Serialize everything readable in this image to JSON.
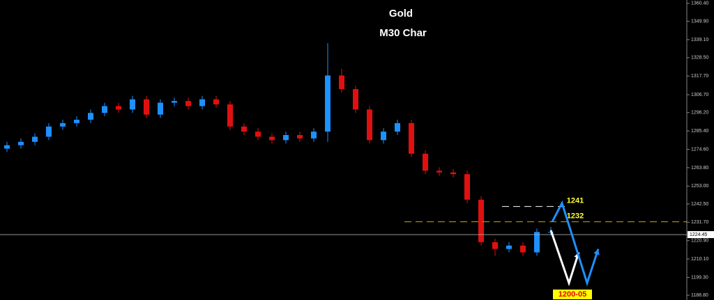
{
  "chart_data": {
    "type": "candlestick",
    "title": "Gold",
    "subtitle": "M30 Char",
    "up_color": "#1e90ff",
    "down_color": "#e01010",
    "xlim": [
      -0.5,
      48.75
    ],
    "ylim": [
      1186,
      1362.4
    ],
    "yticks": [
      {
        "value": 1360.4,
        "label": "1360.40"
      },
      {
        "value": 1349.9,
        "label": "1349.90"
      },
      {
        "value": 1339.1,
        "label": "1339.10"
      },
      {
        "value": 1328.5,
        "label": "1328.50"
      },
      {
        "value": 1317.7,
        "label": "1317.70"
      },
      {
        "value": 1306.7,
        "label": "1306.70"
      },
      {
        "value": 1296.2,
        "label": "1296.20"
      },
      {
        "value": 1285.4,
        "label": "1285.40"
      },
      {
        "value": 1274.6,
        "label": "1274.60"
      },
      {
        "value": 1263.8,
        "label": "1263.80"
      },
      {
        "value": 1253,
        "label": "1253.00"
      },
      {
        "value": 1242.5,
        "label": "1242.50"
      },
      {
        "value": 1231.7,
        "label": "1231.70"
      },
      {
        "value": 1220.9,
        "label": "1220.90"
      },
      {
        "value": 1210.1,
        "label": "1210.10"
      },
      {
        "value": 1199.3,
        "label": "1199.30"
      },
      {
        "value": 1188.8,
        "label": "1188.80"
      }
    ],
    "open": [
      1275,
      1277,
      1279,
      1282,
      1288,
      1290,
      1292,
      1296,
      1300,
      1298,
      1304,
      1295,
      1302,
      1303,
      1300,
      1304,
      1301,
      1288,
      1285,
      1282,
      1280,
      1283,
      1281,
      1285,
      1318,
      1310,
      1298,
      1280,
      1285,
      1290,
      1272,
      1262,
      1261,
      1260,
      1245,
      1220,
      1216,
      1218,
      1214,
      1226
    ],
    "high": [
      1279,
      1281,
      1284,
      1290,
      1292,
      1294,
      1298,
      1302,
      1302,
      1306,
      1306,
      1304,
      1305,
      1305,
      1306,
      1306,
      1303,
      1290,
      1287,
      1284,
      1285,
      1285,
      1287,
      1337,
      1322,
      1312,
      1300,
      1287,
      1292,
      1292,
      1274,
      1264,
      1263,
      1262,
      1247,
      1222,
      1220,
      1220,
      1228,
      1229
    ],
    "low": [
      1273,
      1275,
      1277,
      1280,
      1286,
      1288,
      1290,
      1294,
      1296,
      1296,
      1293,
      1293,
      1300,
      1298,
      1298,
      1299,
      1286,
      1283,
      1280,
      1278,
      1278,
      1279,
      1279,
      1279,
      1308,
      1296,
      1278,
      1278,
      1283,
      1270,
      1260,
      1259,
      1258,
      1243,
      1218,
      1212,
      1214,
      1212,
      1212,
      1224
    ],
    "close": [
      1277,
      1279,
      1282,
      1288,
      1290,
      1292,
      1296,
      1300,
      1298,
      1304,
      1295,
      1302,
      1303,
      1300,
      1304,
      1301,
      1288,
      1285,
      1282,
      1280,
      1283,
      1281,
      1285,
      1318,
      1310,
      1298,
      1280,
      1285,
      1290,
      1272,
      1262,
      1261,
      1260,
      1245,
      1220,
      1216,
      1218,
      1214,
      1226,
      1226
    ],
    "current_price": 1224.45,
    "levels": [
      {
        "value": 1241,
        "color": "#ffffff"
      },
      {
        "value": 1232,
        "color": "#c8a800"
      }
    ],
    "projections": [
      {
        "color": "#ffffff",
        "x": [
          39,
          40.3,
          41
        ],
        "values": [
          1227,
          1196,
          1214
        ]
      },
      {
        "color": "#1e90ff",
        "x": [
          39.1,
          39.8,
          41.6,
          42.4
        ],
        "values": [
          1232,
          1243,
          1196,
          1216
        ]
      }
    ],
    "annotation": "1200-05"
  }
}
